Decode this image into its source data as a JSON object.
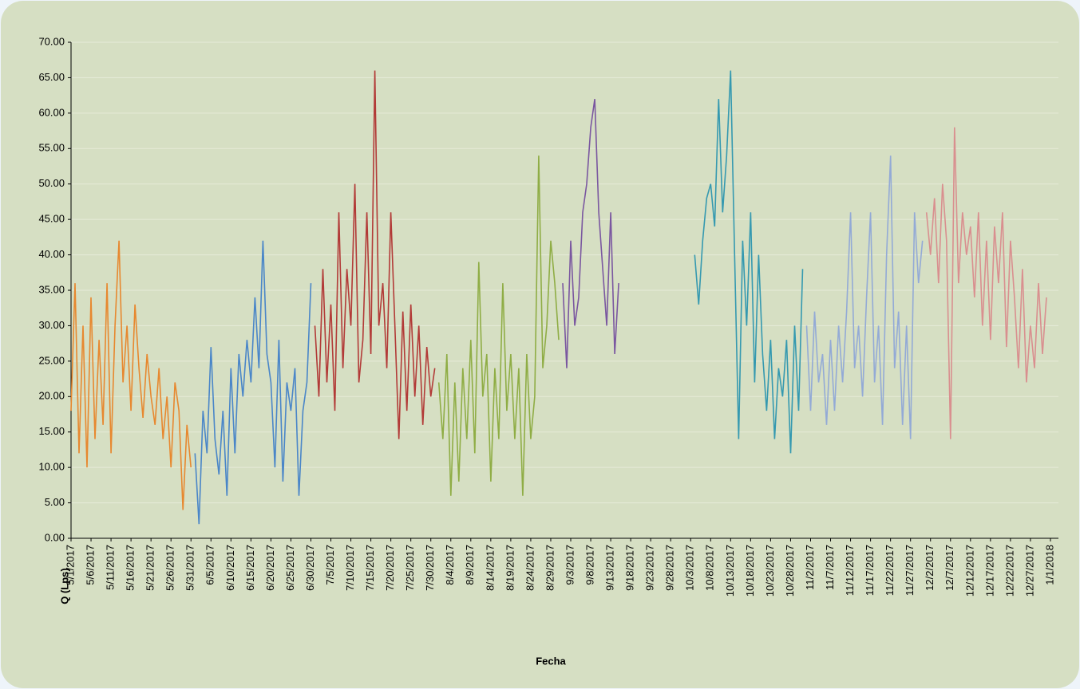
{
  "chart_data": {
    "type": "line",
    "x_label": "Fecha",
    "y_label": "Q (Lps)",
    "xlim": [
      "5/1/2017",
      "1/3/2018"
    ],
    "ylim": [
      0,
      70
    ],
    "yticks": [
      {
        "value": 0,
        "label": "0.00"
      },
      {
        "value": 5,
        "label": "5.00"
      },
      {
        "value": 10,
        "label": "10.00"
      },
      {
        "value": 15,
        "label": "15.00"
      },
      {
        "value": 20,
        "label": "20.00"
      },
      {
        "value": 25,
        "label": "25.00"
      },
      {
        "value": 30,
        "label": "30.00"
      },
      {
        "value": 35,
        "label": "35.00"
      },
      {
        "value": 40,
        "label": "40.00"
      },
      {
        "value": 45,
        "label": "45.00"
      },
      {
        "value": 50,
        "label": "50.00"
      },
      {
        "value": 55,
        "label": "55.00"
      },
      {
        "value": 60,
        "label": "60.00"
      },
      {
        "value": 65,
        "label": "65.00"
      },
      {
        "value": 70,
        "label": "70.00"
      }
    ],
    "xticks": [
      "5/1/2017",
      "5/6/2017",
      "5/11/2017",
      "5/16/2017",
      "5/21/2017",
      "5/26/2017",
      "5/31/2017",
      "6/5/2017",
      "6/10/2017",
      "6/15/2017",
      "6/20/2017",
      "6/25/2017",
      "6/30/2017",
      "7/5/2017",
      "7/10/2017",
      "7/15/2017",
      "7/20/2017",
      "7/25/2017",
      "7/30/2017",
      "8/4/2017",
      "8/9/2017",
      "8/14/2017",
      "8/19/2017",
      "8/24/2017",
      "8/29/2017",
      "9/3/2017",
      "9/8/2017",
      "9/13/2017",
      "9/18/2017",
      "9/23/2017",
      "9/28/2017",
      "10/3/2017",
      "10/8/2017",
      "10/13/2017",
      "10/18/2017",
      "10/23/2017",
      "10/28/2017",
      "11/2/2017",
      "11/7/2017",
      "11/12/2017",
      "11/17/2017",
      "11/22/2017",
      "11/27/2017",
      "12/2/2017",
      "12/7/2017",
      "12/12/2017",
      "12/17/2017",
      "12/22/2017",
      "12/27/2017",
      "1/1/2018"
    ],
    "grid": true,
    "series": [
      {
        "color": "#e7882f",
        "x": [
          "5/1/2017",
          "5/2/2017",
          "5/3/2017",
          "5/4/2017",
          "5/5/2017",
          "5/6/2017",
          "5/7/2017",
          "5/8/2017",
          "5/9/2017",
          "5/10/2017",
          "5/11/2017",
          "5/12/2017",
          "5/13/2017",
          "5/14/2017",
          "5/15/2017",
          "5/16/2017",
          "5/17/2017",
          "5/18/2017",
          "5/19/2017",
          "5/20/2017",
          "5/21/2017",
          "5/22/2017",
          "5/23/2017",
          "5/24/2017",
          "5/25/2017",
          "5/26/2017",
          "5/27/2017",
          "5/28/2017",
          "5/29/2017",
          "5/30/2017",
          "5/31/2017"
        ],
        "values": [
          18,
          36,
          12,
          30,
          10,
          34,
          14,
          28,
          16,
          36,
          12,
          30,
          42,
          22,
          30,
          18,
          33,
          24,
          17,
          26,
          20,
          16,
          24,
          14,
          20,
          10,
          22,
          18,
          4,
          16,
          10
        ]
      },
      {
        "color": "#4a86c8",
        "x": [
          "6/1/2017",
          "6/2/2017",
          "6/3/2017",
          "6/4/2017",
          "6/5/2017",
          "6/6/2017",
          "6/7/2017",
          "6/8/2017",
          "6/9/2017",
          "6/10/2017",
          "6/11/2017",
          "6/12/2017",
          "6/13/2017",
          "6/14/2017",
          "6/15/2017",
          "6/16/2017",
          "6/17/2017",
          "6/18/2017",
          "6/19/2017",
          "6/20/2017",
          "6/21/2017",
          "6/22/2017",
          "6/23/2017",
          "6/24/2017",
          "6/25/2017",
          "6/26/2017",
          "6/27/2017",
          "6/28/2017",
          "6/29/2017",
          "6/30/2017"
        ],
        "values": [
          12,
          2,
          18,
          12,
          27,
          14,
          9,
          18,
          6,
          24,
          12,
          26,
          20,
          28,
          22,
          34,
          24,
          42,
          26,
          22,
          10,
          28,
          8,
          22,
          18,
          24,
          6,
          18,
          22,
          36
        ]
      },
      {
        "color": "#b23a37",
        "x": [
          "7/1/2017",
          "7/2/2017",
          "7/3/2017",
          "7/4/2017",
          "7/5/2017",
          "7/6/2017",
          "7/7/2017",
          "7/8/2017",
          "7/9/2017",
          "7/10/2017",
          "7/11/2017",
          "7/12/2017",
          "7/13/2017",
          "7/14/2017",
          "7/15/2017",
          "7/16/2017",
          "7/17/2017",
          "7/18/2017",
          "7/19/2017",
          "7/20/2017",
          "7/21/2017",
          "7/22/2017",
          "7/23/2017",
          "7/24/2017",
          "7/25/2017",
          "7/26/2017",
          "7/27/2017",
          "7/28/2017",
          "7/29/2017",
          "7/30/2017",
          "7/31/2017"
        ],
        "values": [
          30,
          20,
          38,
          22,
          33,
          18,
          46,
          24,
          38,
          30,
          50,
          22,
          28,
          46,
          26,
          66,
          30,
          36,
          24,
          46,
          30,
          14,
          32,
          18,
          33,
          20,
          30,
          16,
          27,
          20,
          24
        ]
      },
      {
        "color": "#8fad45",
        "x": [
          "8/1/2017",
          "8/2/2017",
          "8/3/2017",
          "8/4/2017",
          "8/5/2017",
          "8/6/2017",
          "8/7/2017",
          "8/8/2017",
          "8/9/2017",
          "8/10/2017",
          "8/11/2017",
          "8/12/2017",
          "8/13/2017",
          "8/14/2017",
          "8/15/2017",
          "8/16/2017",
          "8/17/2017",
          "8/18/2017",
          "8/19/2017",
          "8/20/2017",
          "8/21/2017",
          "8/22/2017",
          "8/23/2017",
          "8/24/2017",
          "8/25/2017",
          "8/26/2017",
          "8/27/2017",
          "8/28/2017",
          "8/29/2017",
          "8/30/2017",
          "8/31/2017"
        ],
        "values": [
          22,
          14,
          26,
          6,
          22,
          8,
          24,
          14,
          28,
          12,
          39,
          20,
          26,
          8,
          24,
          14,
          36,
          18,
          26,
          14,
          24,
          6,
          26,
          14,
          20,
          54,
          24,
          30,
          42,
          36,
          28
        ]
      },
      {
        "color": "#7a57a0",
        "x": [
          "9/1/2017",
          "9/2/2017",
          "9/3/2017",
          "9/4/2017",
          "9/5/2017",
          "9/6/2017",
          "9/7/2017",
          "9/8/2017",
          "9/9/2017",
          "9/10/2017",
          "9/11/2017",
          "9/12/2017",
          "9/13/2017",
          "9/14/2017",
          "9/15/2017"
        ],
        "values": [
          36,
          24,
          42,
          30,
          34,
          46,
          50,
          58,
          62,
          46,
          38,
          30,
          46,
          26,
          36
        ]
      },
      {
        "color": "#3599b0",
        "x": [
          "10/4/2017",
          "10/5/2017",
          "10/6/2017",
          "10/7/2017",
          "10/8/2017",
          "10/9/2017",
          "10/10/2017",
          "10/11/2017",
          "10/12/2017",
          "10/13/2017",
          "10/14/2017",
          "10/15/2017",
          "10/16/2017",
          "10/17/2017",
          "10/18/2017",
          "10/19/2017",
          "10/20/2017",
          "10/21/2017",
          "10/22/2017",
          "10/23/2017",
          "10/24/2017",
          "10/25/2017",
          "10/26/2017",
          "10/27/2017",
          "10/28/2017",
          "10/29/2017",
          "10/30/2017",
          "10/31/2017"
        ],
        "values": [
          40,
          33,
          42,
          48,
          50,
          44,
          62,
          46,
          54,
          66,
          40,
          14,
          42,
          30,
          46,
          22,
          40,
          26,
          18,
          28,
          14,
          24,
          20,
          28,
          12,
          30,
          18,
          38
        ]
      },
      {
        "color": "#93aad6",
        "x": [
          "11/1/2017",
          "11/2/2017",
          "11/3/2017",
          "11/4/2017",
          "11/5/2017",
          "11/6/2017",
          "11/7/2017",
          "11/8/2017",
          "11/9/2017",
          "11/10/2017",
          "11/11/2017",
          "11/12/2017",
          "11/13/2017",
          "11/14/2017",
          "11/15/2017",
          "11/16/2017",
          "11/17/2017",
          "11/18/2017",
          "11/19/2017",
          "11/20/2017",
          "11/21/2017",
          "11/22/2017",
          "11/23/2017",
          "11/24/2017",
          "11/25/2017",
          "11/26/2017",
          "11/27/2017",
          "11/28/2017",
          "11/29/2017",
          "11/30/2017"
        ],
        "values": [
          30,
          18,
          32,
          22,
          26,
          16,
          28,
          18,
          30,
          22,
          32,
          46,
          24,
          30,
          20,
          34,
          46,
          22,
          30,
          16,
          40,
          54,
          24,
          32,
          16,
          30,
          14,
          46,
          36,
          42
        ]
      },
      {
        "color": "#d98f8f",
        "x": [
          "12/1/2017",
          "12/2/2017",
          "12/3/2017",
          "12/4/2017",
          "12/5/2017",
          "12/6/2017",
          "12/7/2017",
          "12/8/2017",
          "12/9/2017",
          "12/10/2017",
          "12/11/2017",
          "12/12/2017",
          "12/13/2017",
          "12/14/2017",
          "12/15/2017",
          "12/16/2017",
          "12/17/2017",
          "12/18/2017",
          "12/19/2017",
          "12/20/2017",
          "12/21/2017",
          "12/22/2017",
          "12/23/2017",
          "12/24/2017",
          "12/25/2017",
          "12/26/2017",
          "12/27/2017",
          "12/28/2017",
          "12/29/2017",
          "12/30/2017",
          "12/31/2017"
        ],
        "values": [
          46,
          40,
          48,
          36,
          50,
          42,
          14,
          58,
          36,
          46,
          40,
          44,
          34,
          46,
          30,
          42,
          28,
          44,
          36,
          46,
          27,
          42,
          34,
          24,
          38,
          22,
          30,
          24,
          36,
          26,
          34
        ]
      }
    ]
  }
}
